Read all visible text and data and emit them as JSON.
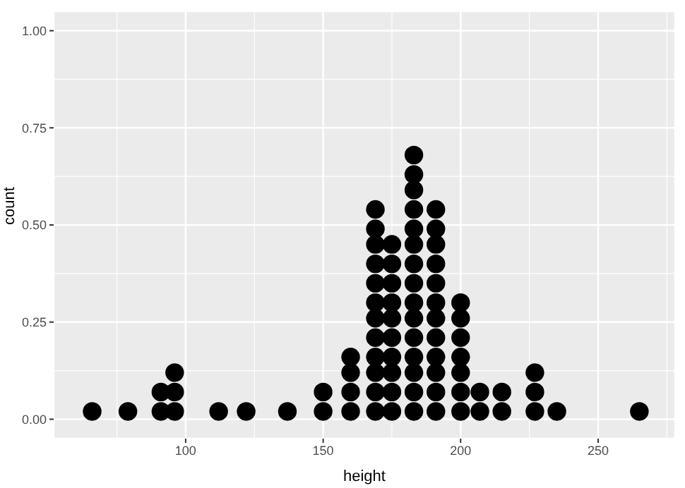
{
  "chart_data": {
    "type": "scatter",
    "xlabel": "height",
    "ylabel": "count",
    "xlim": [
      52,
      278
    ],
    "ylim": [
      -0.05,
      1.05
    ],
    "xticks": [
      100,
      150,
      200,
      250
    ],
    "yticks": [
      {
        "value": 0,
        "label": "0.00"
      },
      {
        "value": 0.25,
        "label": "0.25"
      },
      {
        "value": 0.5,
        "label": "0.50"
      },
      {
        "value": 0.75,
        "label": "0.75"
      },
      {
        "value": 1,
        "label": "1.00"
      }
    ],
    "grid": true,
    "marker": "circle",
    "series": [
      {
        "color": "#000000",
        "x": [
          66,
          79,
          91,
          91,
          96,
          96,
          96,
          112,
          122,
          137,
          150,
          150,
          160,
          160,
          160,
          160,
          169,
          169,
          169,
          169,
          169,
          169,
          169,
          169,
          169,
          169,
          169,
          169,
          175,
          175,
          175,
          175,
          175,
          175,
          175,
          175,
          175,
          175,
          183,
          183,
          183,
          183,
          183,
          183,
          183,
          183,
          183,
          183,
          183,
          183,
          183,
          183,
          183,
          191,
          191,
          191,
          191,
          191,
          191,
          191,
          191,
          191,
          191,
          191,
          191,
          200,
          200,
          200,
          200,
          200,
          200,
          200,
          207,
          207,
          215,
          215,
          227,
          227,
          227,
          235,
          265
        ],
        "values": [
          0.02,
          0.02,
          0.02,
          0.07,
          0.02,
          0.07,
          0.12,
          0.02,
          0.02,
          0.02,
          0.02,
          0.07,
          0.02,
          0.07,
          0.12,
          0.16,
          0.02,
          0.07,
          0.12,
          0.16,
          0.21,
          0.26,
          0.3,
          0.35,
          0.4,
          0.45,
          0.49,
          0.54,
          0.02,
          0.07,
          0.12,
          0.16,
          0.21,
          0.26,
          0.3,
          0.35,
          0.4,
          0.45,
          0.02,
          0.07,
          0.12,
          0.16,
          0.21,
          0.26,
          0.3,
          0.35,
          0.4,
          0.45,
          0.49,
          0.54,
          0.59,
          0.63,
          0.68,
          0.02,
          0.07,
          0.12,
          0.16,
          0.21,
          0.26,
          0.3,
          0.35,
          0.4,
          0.45,
          0.49,
          0.54,
          0.02,
          0.07,
          0.12,
          0.16,
          0.21,
          0.26,
          0.3,
          0.02,
          0.07,
          0.02,
          0.07,
          0.02,
          0.07,
          0.12,
          0.02,
          0.02
        ]
      }
    ]
  }
}
